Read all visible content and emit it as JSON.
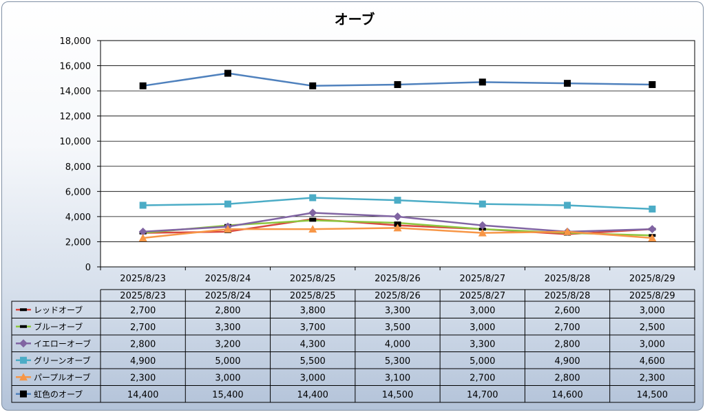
{
  "chart_data": {
    "type": "line",
    "title": "オーブ",
    "categories": [
      "2025/8/23",
      "2025/8/24",
      "2025/8/25",
      "2025/8/26",
      "2025/8/27",
      "2025/8/28",
      "2025/8/29"
    ],
    "ylim": [
      0,
      18000
    ],
    "yticks": [
      0,
      2000,
      4000,
      6000,
      8000,
      10000,
      12000,
      14000,
      16000,
      18000
    ],
    "ytick_labels": [
      "0",
      "2,000",
      "4,000",
      "6,000",
      "8,000",
      "10,000",
      "12,000",
      "14,000",
      "16,000",
      "18,000"
    ],
    "grid": true,
    "legend": "data-table",
    "series": [
      {
        "name": "レッドオーブ",
        "color": "#d9473f",
        "marker": "dash",
        "values": [
          2700,
          2800,
          3800,
          3300,
          3000,
          2600,
          3000
        ],
        "labels": [
          "2,700",
          "2,800",
          "3,800",
          "3,300",
          "3,000",
          "2,600",
          "3,000"
        ]
      },
      {
        "name": "ブルーオーブ",
        "color": "#8dc63f",
        "marker": "dash",
        "values": [
          2700,
          3300,
          3700,
          3500,
          3000,
          2700,
          2500
        ],
        "labels": [
          "2,700",
          "3,300",
          "3,700",
          "3,500",
          "3,000",
          "2,700",
          "2,500"
        ]
      },
      {
        "name": "イエローオーブ",
        "color": "#8064a2",
        "marker": "diamond",
        "values": [
          2800,
          3200,
          4300,
          4000,
          3300,
          2800,
          3000
        ],
        "labels": [
          "2,800",
          "3,200",
          "4,300",
          "4,000",
          "3,300",
          "2,800",
          "3,000"
        ]
      },
      {
        "name": "グリーンオーブ",
        "color": "#4bacc6",
        "marker": "square",
        "values": [
          4900,
          5000,
          5500,
          5300,
          5000,
          4900,
          4600
        ],
        "labels": [
          "4,900",
          "5,000",
          "5,500",
          "5,300",
          "5,000",
          "4,900",
          "4,600"
        ]
      },
      {
        "name": "パープルオーブ",
        "color": "#f79646",
        "marker": "triangle",
        "values": [
          2300,
          3000,
          3000,
          3100,
          2700,
          2800,
          2300
        ],
        "labels": [
          "2,300",
          "3,000",
          "3,000",
          "3,100",
          "2,700",
          "2,800",
          "2,300"
        ]
      },
      {
        "name": "虹色のオーブ",
        "color": "#4f81bd",
        "marker": "black-square",
        "values": [
          14400,
          15400,
          14400,
          14500,
          14700,
          14600,
          14500
        ],
        "labels": [
          "14,400",
          "15,400",
          "14,400",
          "14,500",
          "14,700",
          "14,600",
          "14,500"
        ]
      }
    ]
  }
}
